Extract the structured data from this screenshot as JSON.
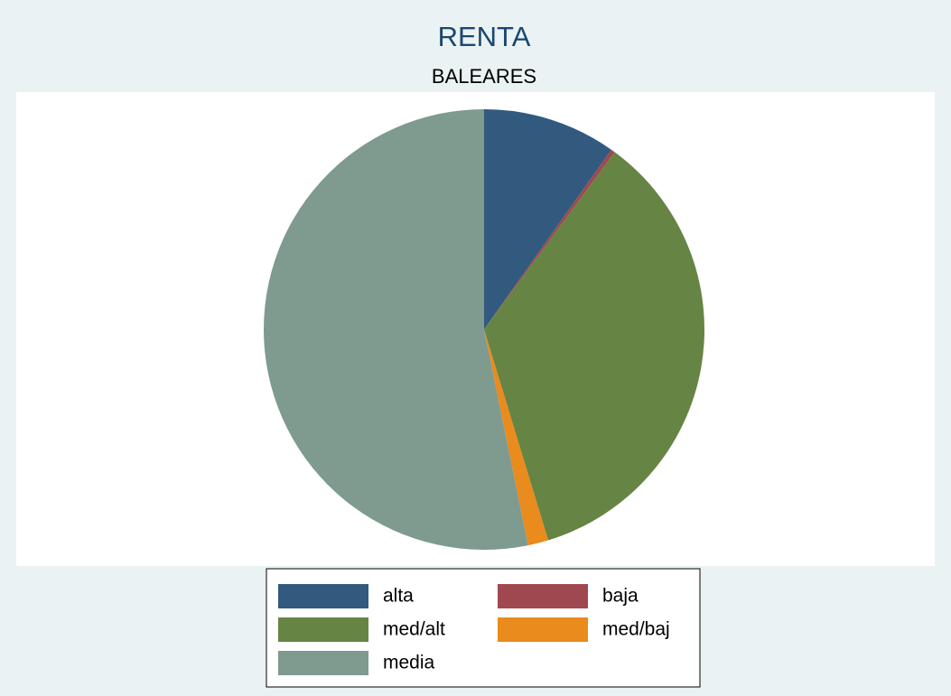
{
  "chart_data": {
    "type": "pie",
    "title": "RENTA",
    "subtitle": "BALEARES",
    "categories": [
      "alta",
      "baja",
      "med/alt",
      "med/baj",
      "media"
    ],
    "values": [
      9.8,
      0.3,
      35.2,
      1.5,
      53.2
    ],
    "colors": [
      "#315a7e",
      "#a0484f",
      "#668443",
      "#e98b1d",
      "#7f9a8f"
    ],
    "legend": "bottom"
  }
}
